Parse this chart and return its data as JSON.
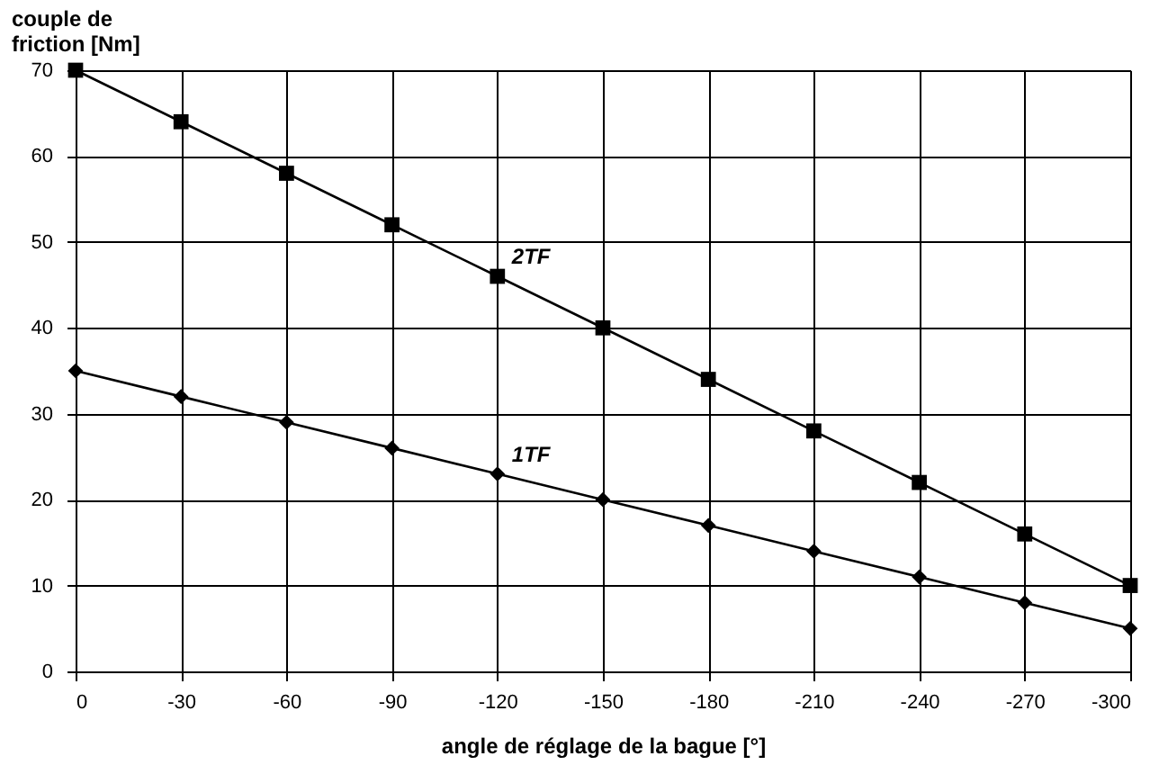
{
  "chart_data": {
    "type": "line",
    "xlabel": "angle de réglage de la bague [°]",
    "ylabel": "couple de\nfriction [Nm]",
    "x": [
      0,
      -30,
      -60,
      -90,
      -120,
      -150,
      -180,
      -210,
      -240,
      -270,
      -300
    ],
    "series": [
      {
        "name": "2TF",
        "color": "#000000",
        "marker": "square",
        "values": [
          70,
          64,
          58,
          52,
          46,
          40,
          34,
          28,
          22,
          16,
          10
        ]
      },
      {
        "name": "1TF",
        "color": "#000000",
        "marker": "diamond",
        "values": [
          35,
          32,
          29,
          26,
          23,
          20,
          17,
          14,
          11,
          8,
          5
        ]
      }
    ],
    "xlim": [
      0,
      -300
    ],
    "xticks": [
      0,
      -30,
      -60,
      -90,
      -120,
      -150,
      -180,
      -210,
      -240,
      -270,
      -300
    ],
    "ylim": [
      0,
      70
    ],
    "yticks": [
      0,
      10,
      20,
      30,
      40,
      50,
      60,
      70
    ],
    "grid": true,
    "line_style": "solid",
    "legend": false
  }
}
